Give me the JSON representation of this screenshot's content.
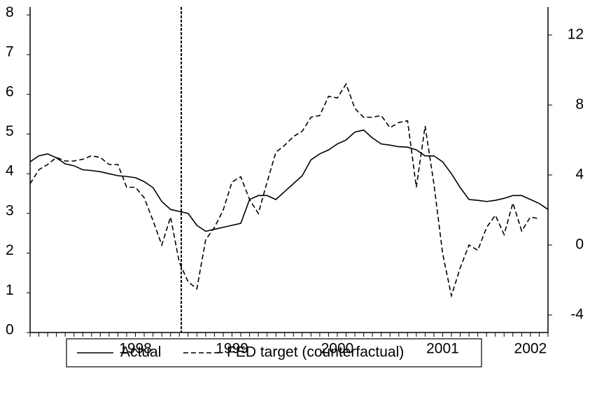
{
  "chart_data": {
    "type": "line",
    "categories": [
      null,
      null,
      null,
      null,
      null,
      null,
      null,
      null,
      null,
      null,
      null,
      null,
      "1998",
      null,
      null,
      null,
      null,
      null,
      null,
      null,
      null,
      null,
      null,
      "1999",
      null,
      null,
      null,
      null,
      null,
      null,
      null,
      null,
      null,
      null,
      null,
      "2000",
      null,
      null,
      null,
      null,
      null,
      null,
      null,
      null,
      null,
      null,
      null,
      "2001",
      null,
      null,
      null,
      null,
      null,
      null,
      null,
      null,
      null,
      "2002",
      null,
      null
    ],
    "series": [
      {
        "name": "Actual",
        "color": "#000000",
        "dashed": false,
        "values": [
          4.3,
          4.45,
          4.5,
          4.4,
          4.25,
          4.2,
          4.1,
          4.08,
          4.05,
          4.0,
          3.95,
          3.93,
          3.9,
          3.8,
          3.65,
          3.3,
          3.1,
          3.05,
          3.0,
          2.7,
          2.55,
          2.6,
          2.65,
          2.7,
          2.75,
          3.35,
          3.45,
          3.45,
          3.35,
          3.55,
          3.75,
          3.95,
          4.35,
          4.5,
          4.6,
          4.75,
          4.85,
          5.05,
          5.1,
          4.9,
          4.75,
          4.72,
          4.68,
          4.67,
          4.6,
          4.45,
          4.45,
          4.3,
          4.0,
          3.65,
          3.35,
          3.33,
          3.3,
          3.33,
          3.38,
          3.45,
          3.45,
          3.35,
          3.25,
          3.1
        ]
      },
      {
        "name": "FED target (counterfactual)",
        "color": "#000000",
        "dashed": true,
        "axis": "y2",
        "values": [
          3.5,
          4.3,
          4.6,
          5.0,
          4.8,
          4.8,
          4.9,
          5.1,
          5.0,
          4.6,
          4.6,
          3.3,
          3.3,
          2.7,
          1.4,
          0,
          1.6,
          -1.0,
          -2.1,
          -2.5,
          0.3,
          1.0,
          2.0,
          3.6,
          3.9,
          2.6,
          1.8,
          3.6,
          5.3,
          5.7,
          6.2,
          6.5,
          7.3,
          7.4,
          8.5,
          8.4,
          9.2,
          7.8,
          7.3,
          7.3,
          7.4,
          6.7,
          7.0,
          7.1,
          3.3,
          6.8,
          3.5,
          -0.5,
          -2.9,
          -1.3,
          0,
          -0.3,
          1.0,
          1.7,
          0.6,
          2.4,
          0.8,
          1.6,
          1.5,
          null
        ]
      }
    ],
    "ylim": [
      0,
      8.2
    ],
    "yticks": [
      0,
      1,
      2,
      3,
      4,
      5,
      6,
      7,
      8
    ],
    "y2lim": [
      -5,
      13.6
    ],
    "y2ticks": [
      -4,
      0,
      4,
      8,
      12
    ],
    "grid": false
  }
}
